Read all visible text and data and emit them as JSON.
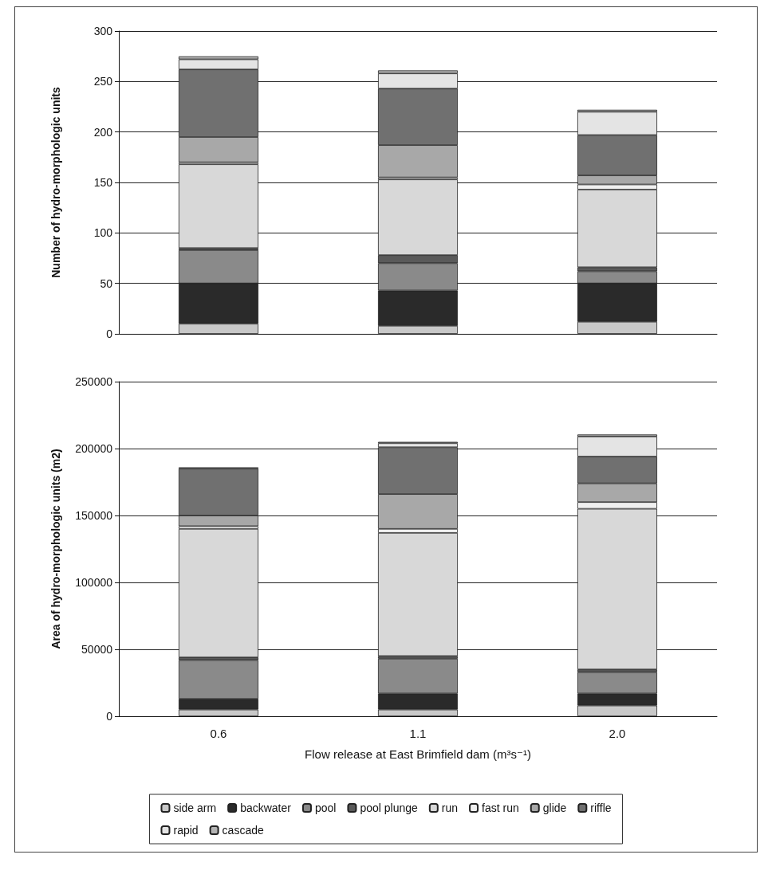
{
  "chart_data": [
    {
      "type": "bar",
      "stacked": true,
      "ylabel": "Number of hydro-morphologic units",
      "categories": [
        "0.6",
        "1.1",
        "2.0"
      ],
      "ylim": [
        0,
        300
      ],
      "yticks": [
        0,
        50,
        100,
        150,
        200,
        250,
        300
      ],
      "grid": "y",
      "legend": false,
      "tick_labels": "y",
      "series": [
        {
          "color": "#c8c8c8",
          "values": [
            10,
            8,
            12
          ]
        },
        {
          "color": "#2a2a2a",
          "values": [
            40,
            35,
            38
          ]
        },
        {
          "color": "#8a8a8a",
          "values": [
            33,
            27,
            12
          ]
        },
        {
          "color": "#5a5a5a",
          "values": [
            2,
            8,
            4
          ]
        },
        {
          "color": "#d8d8d8",
          "values": [
            83,
            75,
            77
          ]
        },
        {
          "color": "#f0f0f0",
          "values": [
            2,
            2,
            5
          ]
        },
        {
          "color": "#a8a8a8",
          "values": [
            25,
            32,
            9
          ]
        },
        {
          "color": "#707070",
          "values": [
            67,
            56,
            40
          ]
        },
        {
          "color": "#e4e4e4",
          "values": [
            10,
            15,
            23
          ]
        },
        {
          "color": "#b4b4b4",
          "values": [
            3,
            3,
            2
          ]
        }
      ]
    },
    {
      "type": "bar",
      "stacked": true,
      "xlabel": "Flow release at East Brimfield dam (m³s⁻¹)",
      "ylabel": "Area of hydro-morphologic units (m2)",
      "categories": [
        "0.6",
        "1.1",
        "2.0"
      ],
      "ylim": [
        0,
        250000
      ],
      "yticks": [
        0,
        50000,
        100000,
        150000,
        200000,
        250000
      ],
      "grid": "y",
      "legend": "bottom",
      "series": [
        {
          "name": "side arm",
          "color": "#c8c8c8",
          "values": [
            5000,
            5000,
            8000
          ]
        },
        {
          "name": "backwater",
          "color": "#2a2a2a",
          "values": [
            8000,
            12000,
            9000
          ]
        },
        {
          "name": "pool",
          "color": "#8a8a8a",
          "values": [
            29000,
            26000,
            16000
          ]
        },
        {
          "name": "pool plunge",
          "color": "#5a5a5a",
          "values": [
            2000,
            2000,
            2000
          ]
        },
        {
          "name": "run",
          "color": "#d8d8d8",
          "values": [
            96000,
            92000,
            120000
          ]
        },
        {
          "name": "fast run",
          "color": "#f0f0f0",
          "values": [
            2000,
            3000,
            5000
          ]
        },
        {
          "name": "glide",
          "color": "#a8a8a8",
          "values": [
            8000,
            26000,
            14000
          ]
        },
        {
          "name": "riffle",
          "color": "#707070",
          "values": [
            35000,
            35000,
            20000
          ]
        },
        {
          "name": "rapid",
          "color": "#e4e4e4",
          "values": [
            null,
            3000,
            15000
          ]
        },
        {
          "name": "cascade",
          "color": "#b4b4b4",
          "values": [
            1000,
            1000,
            1500
          ]
        }
      ]
    }
  ]
}
